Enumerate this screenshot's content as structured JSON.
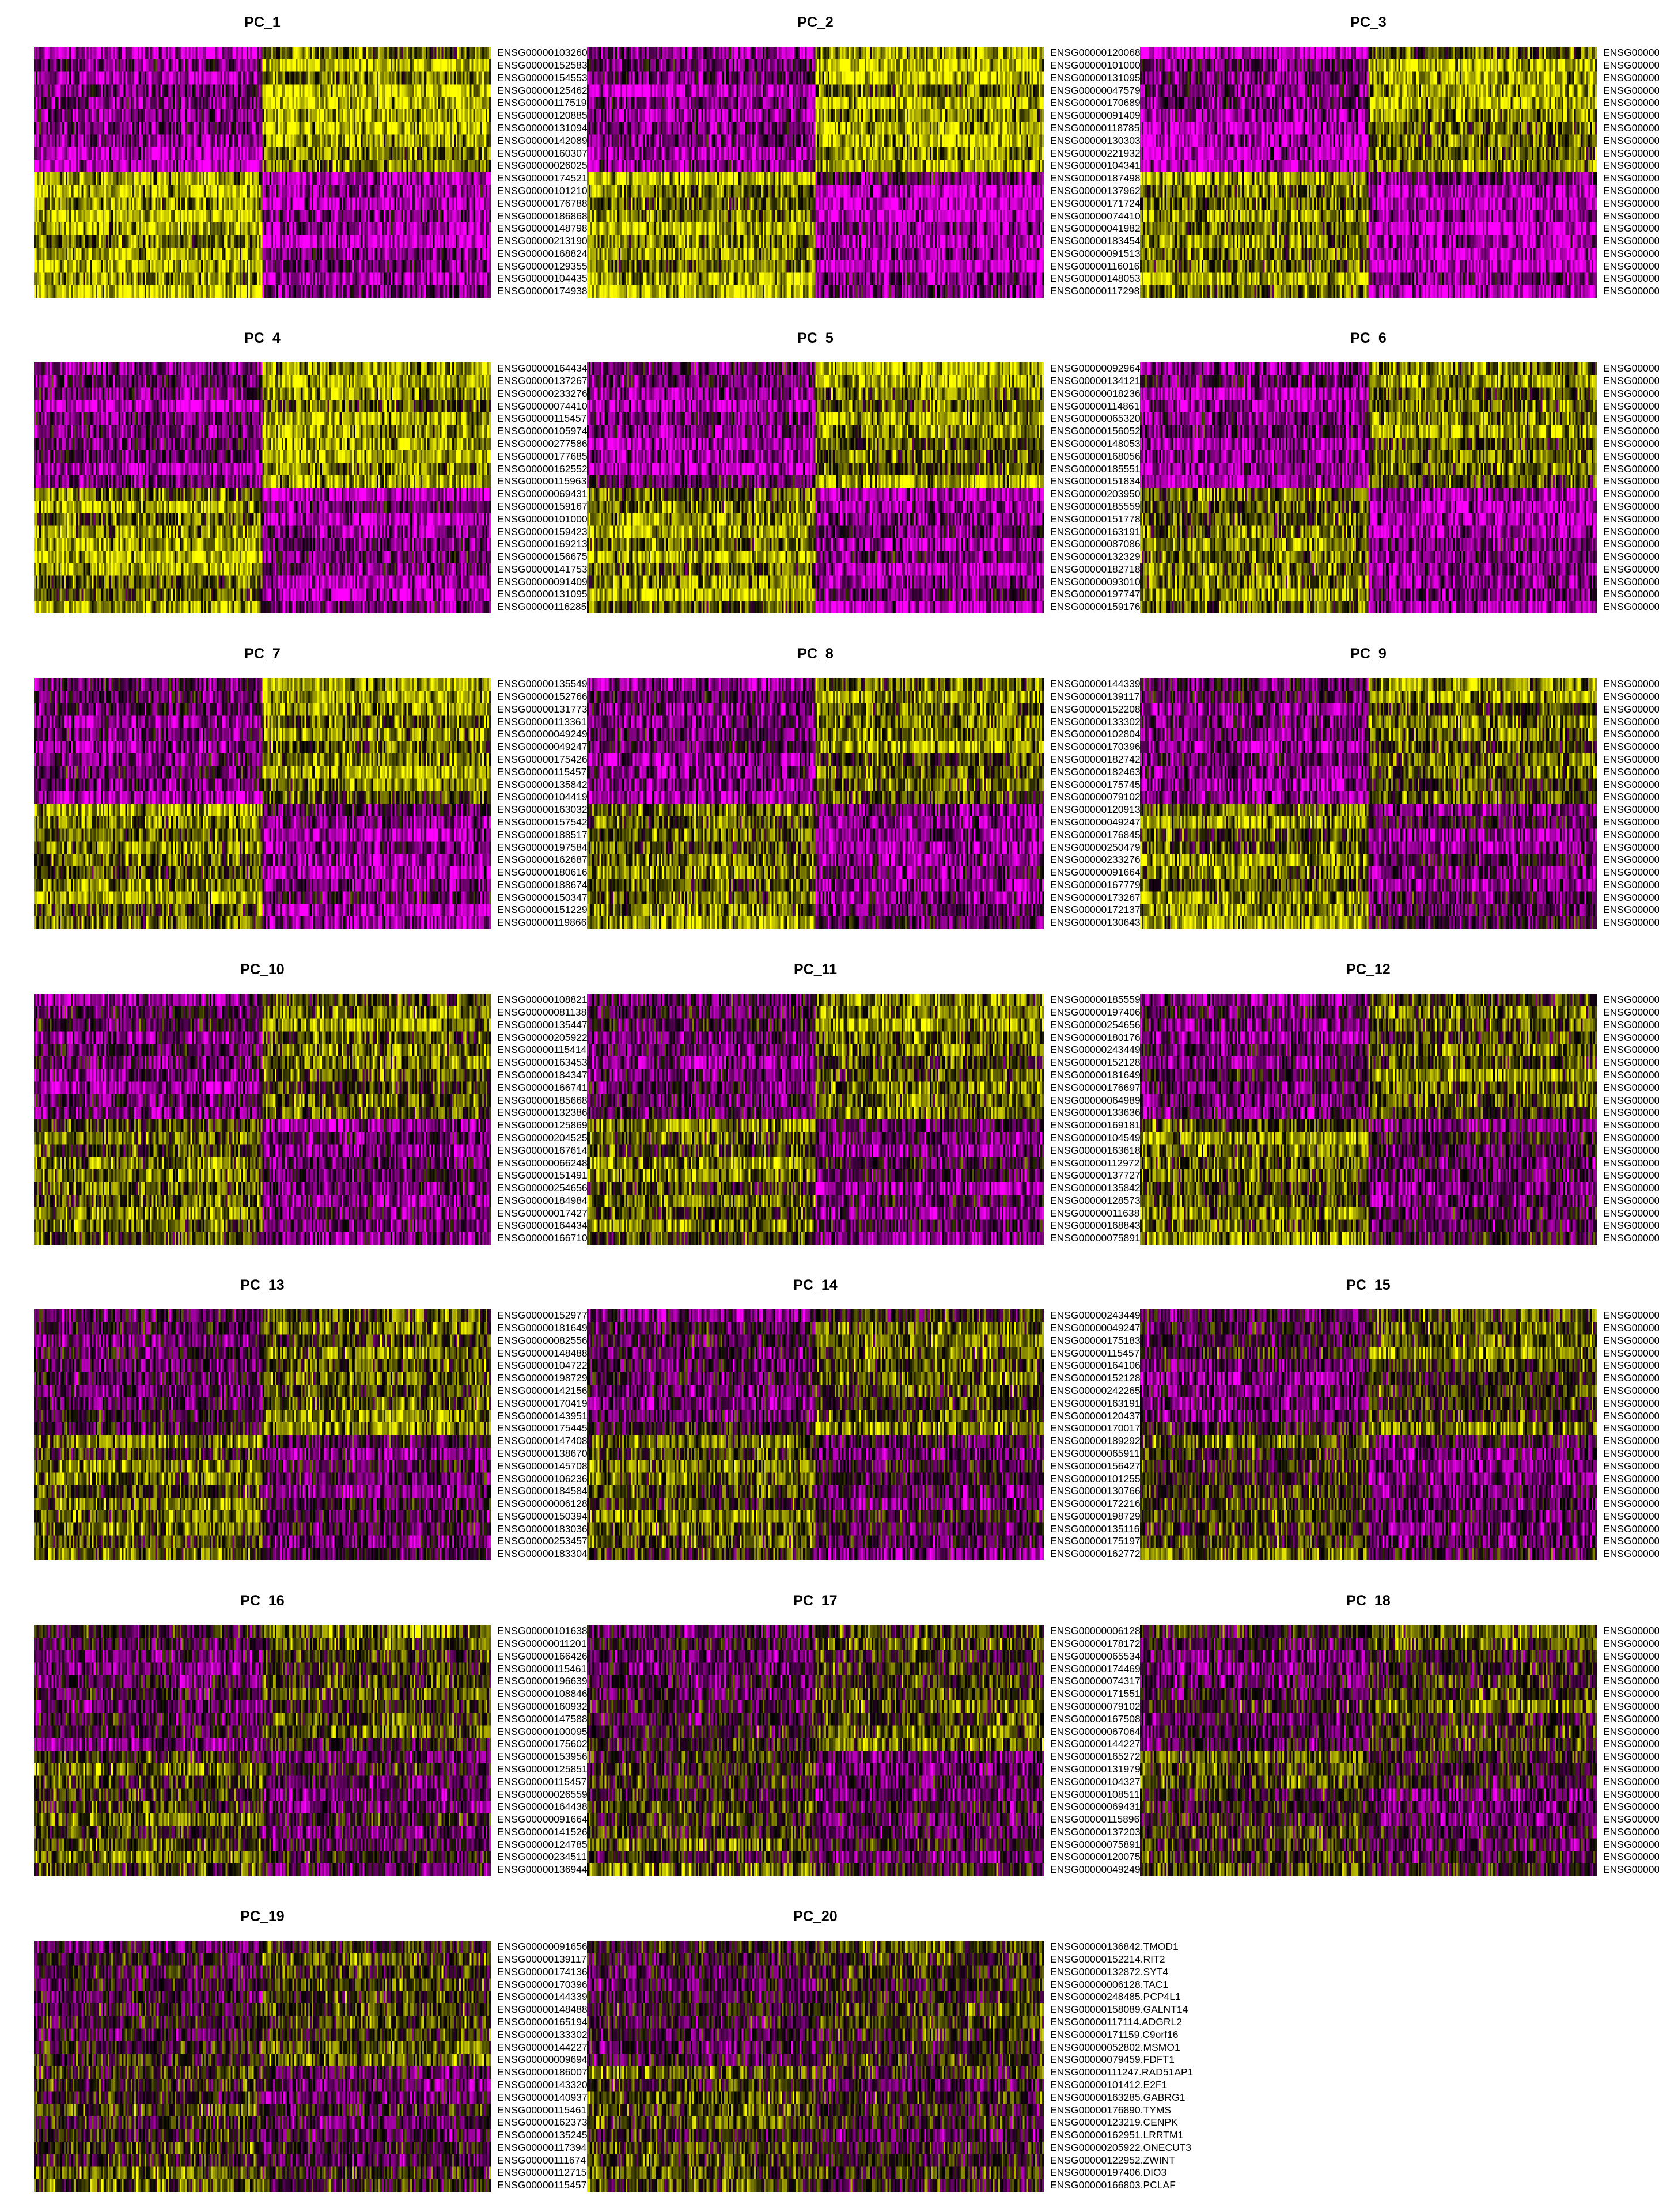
{
  "colors": {
    "low": "#FF00FF",
    "mid": "#000000",
    "high": "#FFFF00"
  },
  "chart_data": [
    {
      "type": "heatmap",
      "title": "PC_1",
      "genes": [
        "ENSG00000103260",
        "ENSG00000152583",
        "ENSG00000154553",
        "ENSG00000125462",
        "ENSG00000117519",
        "ENSG00000120885",
        "ENSG00000131094",
        "ENSG00000142089",
        "ENSG00000160307",
        "ENSG00000026025",
        "ENSG00000174521",
        "ENSG00000101210",
        "ENSG00000176788",
        "ENSG00000186868",
        "ENSG00000148798",
        "ENSG00000213190",
        "ENSG00000168824",
        "ENSG00000129355",
        "ENSG00000104435",
        "ENSG00000174938"
      ]
    },
    {
      "type": "heatmap",
      "title": "PC_2",
      "genes": [
        "ENSG00000120068",
        "ENSG00000101000",
        "ENSG00000131095",
        "ENSG00000047579",
        "ENSG00000170689",
        "ENSG00000091409",
        "ENSG00000118785",
        "ENSG00000130303",
        "ENSG00000221932",
        "ENSG00000104341",
        "ENSG00000187498",
        "ENSG00000137962",
        "ENSG00000171724",
        "ENSG00000074410",
        "ENSG00000041982",
        "ENSG00000183454",
        "ENSG00000091513",
        "ENSG00000116016",
        "ENSG00000148053",
        "ENSG00000117298"
      ]
    },
    {
      "type": "heatmap",
      "title": "PC_3",
      "genes": [
        "ENSG00000",
        "ENSG00000",
        "ENSG00000",
        "ENSG00000",
        "ENSG00000",
        "ENSG00000",
        "ENSG00000",
        "ENSG00000",
        "ENSG00000",
        "ENSG00000",
        "ENSG00000",
        "ENSG00000",
        "ENSG00000",
        "ENSG00000",
        "ENSG00000",
        "ENSG00000",
        "ENSG00000",
        "ENSG00000",
        "ENSG00000",
        "ENSG00000"
      ]
    },
    {
      "type": "heatmap",
      "title": "PC_4",
      "genes": [
        "ENSG00000164434",
        "ENSG00000137267",
        "ENSG00000233276",
        "ENSG00000074410",
        "ENSG00000115457",
        "ENSG00000105974",
        "ENSG00000277586",
        "ENSG00000177685",
        "ENSG00000162552",
        "ENSG00000115963",
        "ENSG00000069431",
        "ENSG00000159167",
        "ENSG00000101000",
        "ENSG00000159423",
        "ENSG00000169213",
        "ENSG00000156675",
        "ENSG00000141753",
        "ENSG00000091409",
        "ENSG00000131095",
        "ENSG00000116285"
      ]
    },
    {
      "type": "heatmap",
      "title": "PC_5",
      "genes": [
        "ENSG00000092964",
        "ENSG00000134121",
        "ENSG00000018236",
        "ENSG00000114861",
        "ENSG00000065320",
        "ENSG00000156052",
        "ENSG00000148053",
        "ENSG00000168056",
        "ENSG00000185551",
        "ENSG00000151834",
        "ENSG00000203950",
        "ENSG00000185559",
        "ENSG00000151778",
        "ENSG00000163191",
        "ENSG00000087086",
        "ENSG00000132329",
        "ENSG00000182718",
        "ENSG00000093010",
        "ENSG00000197747",
        "ENSG00000159176"
      ]
    },
    {
      "type": "heatmap",
      "title": "PC_6",
      "genes": [
        "ENSG00000",
        "ENSG00000",
        "ENSG00000",
        "ENSG00000",
        "ENSG00000",
        "ENSG00000",
        "ENSG00000",
        "ENSG00000",
        "ENSG00000",
        "ENSG00000",
        "ENSG00000",
        "ENSG00000",
        "ENSG00000",
        "ENSG00000",
        "ENSG00000",
        "ENSG00000",
        "ENSG00000",
        "ENSG00000",
        "ENSG00000",
        "ENSG00000"
      ]
    },
    {
      "type": "heatmap",
      "title": "PC_7",
      "genes": [
        "ENSG00000135549",
        "ENSG00000152766",
        "ENSG00000131773",
        "ENSG00000113361",
        "ENSG00000049249",
        "ENSG00000049247",
        "ENSG00000175426",
        "ENSG00000115457",
        "ENSG00000135842",
        "ENSG00000104419",
        "ENSG00000163032",
        "ENSG00000157542",
        "ENSG00000188517",
        "ENSG00000197584",
        "ENSG00000162687",
        "ENSG00000180616",
        "ENSG00000188674",
        "ENSG00000150347",
        "ENSG00000151229",
        "ENSG00000119866"
      ]
    },
    {
      "type": "heatmap",
      "title": "PC_8",
      "genes": [
        "ENSG00000144339",
        "ENSG00000139117",
        "ENSG00000152208",
        "ENSG00000133302",
        "ENSG00000102804",
        "ENSG00000170396",
        "ENSG00000182742",
        "ENSG00000182463",
        "ENSG00000175745",
        "ENSG00000079102",
        "ENSG00000120913",
        "ENSG00000049247",
        "ENSG00000176845",
        "ENSG00000250479",
        "ENSG00000233276",
        "ENSG00000091664",
        "ENSG00000167779",
        "ENSG00000173267",
        "ENSG00000172137",
        "ENSG00000130643"
      ]
    },
    {
      "type": "heatmap",
      "title": "PC_9",
      "genes": [
        "ENSG00000",
        "ENSG00000",
        "ENSG00000",
        "ENSG00000",
        "ENSG00000",
        "ENSG00000",
        "ENSG00000",
        "ENSG00000",
        "ENSG00000",
        "ENSG00000",
        "ENSG00000",
        "ENSG00000",
        "ENSG00000",
        "ENSG00000",
        "ENSG00000",
        "ENSG00000",
        "ENSG00000",
        "ENSG00000",
        "ENSG00000",
        "ENSG00000"
      ]
    },
    {
      "type": "heatmap",
      "title": "PC_10",
      "genes": [
        "ENSG00000108821",
        "ENSG00000081138",
        "ENSG00000135447",
        "ENSG00000205922",
        "ENSG00000115414",
        "ENSG00000163453",
        "ENSG00000184347",
        "ENSG00000166741",
        "ENSG00000185668",
        "ENSG00000132386",
        "ENSG00000125869",
        "ENSG00000204525",
        "ENSG00000167614",
        "ENSG00000066248",
        "ENSG00000151491",
        "ENSG00000254656",
        "ENSG00000184984",
        "ENSG00000017427",
        "ENSG00000164434",
        "ENSG00000166710"
      ]
    },
    {
      "type": "heatmap",
      "title": "PC_11",
      "genes": [
        "ENSG00000185559",
        "ENSG00000197406",
        "ENSG00000254656",
        "ENSG00000180176",
        "ENSG00000243449",
        "ENSG00000152128",
        "ENSG00000181649",
        "ENSG00000176697",
        "ENSG00000064989",
        "ENSG00000133636",
        "ENSG00000169181",
        "ENSG00000104549",
        "ENSG00000163618",
        "ENSG00000112972",
        "ENSG00000137727",
        "ENSG00000135842",
        "ENSG00000128573",
        "ENSG00000011638",
        "ENSG00000168843",
        "ENSG00000075891"
      ]
    },
    {
      "type": "heatmap",
      "title": "PC_12",
      "genes": [
        "ENSG00000",
        "ENSG00000",
        "ENSG00000",
        "ENSG00000",
        "ENSG00000",
        "ENSG00000",
        "ENSG00000",
        "ENSG00000",
        "ENSG00000",
        "ENSG00000",
        "ENSG00000",
        "ENSG00000",
        "ENSG00000",
        "ENSG00000",
        "ENSG00000",
        "ENSG00000",
        "ENSG00000",
        "ENSG00000",
        "ENSG00000",
        "ENSG00000"
      ]
    },
    {
      "type": "heatmap",
      "title": "PC_13",
      "genes": [
        "ENSG00000152977",
        "ENSG00000181649",
        "ENSG00000082556",
        "ENSG00000148488",
        "ENSG00000104722",
        "ENSG00000198729",
        "ENSG00000142156",
        "ENSG00000170419",
        "ENSG00000143951",
        "ENSG00000175445",
        "ENSG00000147408",
        "ENSG00000138670",
        "ENSG00000145708",
        "ENSG00000106236",
        "ENSG00000184584",
        "ENSG00000006128",
        "ENSG00000150394",
        "ENSG00000183036",
        "ENSG00000253457",
        "ENSG00000183304"
      ]
    },
    {
      "type": "heatmap",
      "title": "PC_14",
      "genes": [
        "ENSG00000243449",
        "ENSG00000049247",
        "ENSG00000175183",
        "ENSG00000115457",
        "ENSG00000164106",
        "ENSG00000152128",
        "ENSG00000242265",
        "ENSG00000163191",
        "ENSG00000120437",
        "ENSG00000170017",
        "ENSG00000189292",
        "ENSG00000065911",
        "ENSG00000156427",
        "ENSG00000101255",
        "ENSG00000130766",
        "ENSG00000172216",
        "ENSG00000198729",
        "ENSG00000135116",
        "ENSG00000175197",
        "ENSG00000162772"
      ]
    },
    {
      "type": "heatmap",
      "title": "PC_15",
      "genes": [
        "ENSG00000",
        "ENSG00000",
        "ENSG00000",
        "ENSG00000",
        "ENSG00000",
        "ENSG00000",
        "ENSG00000",
        "ENSG00000",
        "ENSG00000",
        "ENSG00000",
        "ENSG00000",
        "ENSG00000",
        "ENSG00000",
        "ENSG00000",
        "ENSG00000",
        "ENSG00000",
        "ENSG00000",
        "ENSG00000",
        "ENSG00000",
        "ENSG00000"
      ]
    },
    {
      "type": "heatmap",
      "title": "PC_16",
      "genes": [
        "ENSG00000101638",
        "ENSG00000011201",
        "ENSG00000166426",
        "ENSG00000115461",
        "ENSG00000196639",
        "ENSG00000108846",
        "ENSG00000160932",
        "ENSG00000147588",
        "ENSG00000100095",
        "ENSG00000175602",
        "ENSG00000153956",
        "ENSG00000125851",
        "ENSG00000115457",
        "ENSG00000026559",
        "ENSG00000164438",
        "ENSG00000091664",
        "ENSG00000141526",
        "ENSG00000124785",
        "ENSG00000234511",
        "ENSG00000136944"
      ]
    },
    {
      "type": "heatmap",
      "title": "PC_17",
      "genes": [
        "ENSG00000006128",
        "ENSG00000178172",
        "ENSG00000065534",
        "ENSG00000174469",
        "ENSG00000074317",
        "ENSG00000171551",
        "ENSG00000079102",
        "ENSG00000167508",
        "ENSG00000067064",
        "ENSG00000144227",
        "ENSG00000165272",
        "ENSG00000131979",
        "ENSG00000104327",
        "ENSG00000108511",
        "ENSG00000069431",
        "ENSG00000115896",
        "ENSG00000137203",
        "ENSG00000075891",
        "ENSG00000120075",
        "ENSG00000049249"
      ]
    },
    {
      "type": "heatmap",
      "title": "PC_18",
      "genes": [
        "ENSG00000",
        "ENSG00000",
        "ENSG00000",
        "ENSG00000",
        "ENSG00000",
        "ENSG00000",
        "ENSG00000",
        "ENSG00000",
        "ENSG00000",
        "ENSG00000",
        "ENSG00000",
        "ENSG00000",
        "ENSG00000",
        "ENSG00000",
        "ENSG00000",
        "ENSG00000",
        "ENSG00000",
        "ENSG00000",
        "ENSG00000",
        "ENSG00000"
      ]
    },
    {
      "type": "heatmap",
      "title": "PC_19",
      "genes": [
        "ENSG00000091656",
        "ENSG00000139117",
        "ENSG00000174136",
        "ENSG00000170396",
        "ENSG00000144339",
        "ENSG00000148488",
        "ENSG00000165194",
        "ENSG00000133302",
        "ENSG00000144227",
        "ENSG00000009694",
        "ENSG00000186007",
        "ENSG00000143320",
        "ENSG00000140937",
        "ENSG00000115461",
        "ENSG00000162373",
        "ENSG00000135245",
        "ENSG00000117394",
        "ENSG00000111674",
        "ENSG00000112715",
        "ENSG00000115457"
      ]
    },
    {
      "type": "heatmap",
      "title": "PC_20",
      "genes": [
        "ENSG00000136842.TMOD1",
        "ENSG00000152214.RIT2",
        "ENSG00000132872.SYT4",
        "ENSG00000006128.TAC1",
        "ENSG00000248485.PCP4L1",
        "ENSG00000158089.GALNT14",
        "ENSG00000117114.ADGRL2",
        "ENSG00000171159.C9orf16",
        "ENSG00000052802.MSMO1",
        "ENSG00000079459.FDFT1",
        "ENSG00000111247.RAD51AP1",
        "ENSG00000101412.E2F1",
        "ENSG00000163285.GABRG1",
        "ENSG00000176890.TYMS",
        "ENSG00000123219.CENPK",
        "ENSG00000162951.LRRTM1",
        "ENSG00000205922.ONECUT3",
        "ENSG00000122952.ZWINT",
        "ENSG00000197406.DIO3",
        "ENSG00000166803.PCLAF"
      ]
    }
  ]
}
